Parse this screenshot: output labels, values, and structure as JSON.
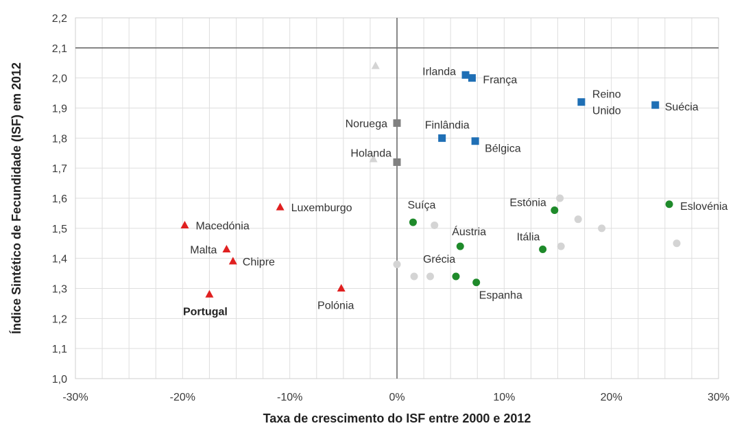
{
  "chart_data": {
    "type": "scatter",
    "xlabel": "Taxa de crescimento do ISF entre 2000 e 2012",
    "ylabel": "Índice Sintético de Fecundidade (ISF) em 2012",
    "xlim": [
      -30,
      30
    ],
    "ylim": [
      1.0,
      2.2
    ],
    "x_ticks": [
      -30,
      -20,
      -10,
      0,
      10,
      20,
      30
    ],
    "x_tick_labels": [
      "-30%",
      "-20%",
      "-10%",
      "0%",
      "10%",
      "20%",
      "30%"
    ],
    "y_ticks": [
      1.0,
      1.1,
      1.2,
      1.3,
      1.4,
      1.5,
      1.6,
      1.7,
      1.8,
      1.9,
      2.0,
      2.1,
      2.2
    ],
    "y_tick_labels": [
      "1,0",
      "1,1",
      "1,2",
      "1,3",
      "1,4",
      "1,5",
      "1,6",
      "1,7",
      "1,8",
      "1,9",
      "2,0",
      "2,1",
      "2,2"
    ],
    "reference_line_y": 2.1,
    "reference_line_x": 0,
    "grid": true,
    "colors": {
      "red": "#e02020",
      "blue": "#1f6fb5",
      "gray": "#808080",
      "green": "#1e8a2a",
      "light": "#d4d4d4"
    },
    "points": [
      {
        "x": -19.8,
        "y": 1.51,
        "shape": "triangle",
        "color": "red",
        "label": "Macedónia"
      },
      {
        "x": -15.9,
        "y": 1.43,
        "shape": "triangle",
        "color": "red",
        "label": "Malta"
      },
      {
        "x": -15.3,
        "y": 1.39,
        "shape": "triangle",
        "color": "red",
        "label": "Chipre"
      },
      {
        "x": -17.5,
        "y": 1.28,
        "shape": "triangle",
        "color": "red",
        "label": "Portugal",
        "bold": true
      },
      {
        "x": -10.9,
        "y": 1.57,
        "shape": "triangle",
        "color": "red",
        "label": "Luxemburgo"
      },
      {
        "x": -5.2,
        "y": 1.3,
        "shape": "triangle",
        "color": "red",
        "label": "Polónia"
      },
      {
        "x": 6.4,
        "y": 2.01,
        "shape": "square",
        "color": "blue",
        "label": "Irlanda"
      },
      {
        "x": 7.0,
        "y": 2.0,
        "shape": "square",
        "color": "blue",
        "label": "França"
      },
      {
        "x": 17.2,
        "y": 1.92,
        "shape": "square",
        "color": "blue",
        "label": "Reino Unido",
        "label_lines": [
          "Reino",
          "Unido"
        ]
      },
      {
        "x": 24.1,
        "y": 1.91,
        "shape": "square",
        "color": "blue",
        "label": "Suécia"
      },
      {
        "x": 4.2,
        "y": 1.8,
        "shape": "square",
        "color": "blue",
        "label": "Finlândia"
      },
      {
        "x": 7.3,
        "y": 1.79,
        "shape": "square",
        "color": "blue",
        "label": "Bélgica"
      },
      {
        "x": 0.0,
        "y": 1.85,
        "shape": "square",
        "color": "gray",
        "label": "Noruega"
      },
      {
        "x": 0.0,
        "y": 1.72,
        "shape": "square",
        "color": "gray",
        "label": "Holanda"
      },
      {
        "x": 1.5,
        "y": 1.52,
        "shape": "circle",
        "color": "green",
        "label": "Suíça"
      },
      {
        "x": 5.9,
        "y": 1.44,
        "shape": "circle",
        "color": "green",
        "label": "Áustria"
      },
      {
        "x": 5.5,
        "y": 1.34,
        "shape": "circle",
        "color": "green",
        "label": "Grécia"
      },
      {
        "x": 7.4,
        "y": 1.32,
        "shape": "circle",
        "color": "green",
        "label": "Espanha"
      },
      {
        "x": 14.7,
        "y": 1.56,
        "shape": "circle",
        "color": "green",
        "label": "Estónia"
      },
      {
        "x": 13.6,
        "y": 1.43,
        "shape": "circle",
        "color": "green",
        "label": "Itália"
      },
      {
        "x": 25.4,
        "y": 1.58,
        "shape": "circle",
        "color": "green",
        "label": "Eslovénia"
      },
      {
        "x": -2.0,
        "y": 2.04,
        "shape": "triangle",
        "color": "light"
      },
      {
        "x": -2.2,
        "y": 1.73,
        "shape": "triangle",
        "color": "light"
      },
      {
        "x": 15.2,
        "y": 1.6,
        "shape": "circle",
        "color": "light"
      },
      {
        "x": 16.9,
        "y": 1.53,
        "shape": "circle",
        "color": "light"
      },
      {
        "x": 19.1,
        "y": 1.5,
        "shape": "circle",
        "color": "light"
      },
      {
        "x": 3.5,
        "y": 1.51,
        "shape": "circle",
        "color": "light"
      },
      {
        "x": 15.3,
        "y": 1.44,
        "shape": "circle",
        "color": "light"
      },
      {
        "x": 26.1,
        "y": 1.45,
        "shape": "circle",
        "color": "light"
      },
      {
        "x": 0.0,
        "y": 1.38,
        "shape": "circle",
        "color": "light"
      },
      {
        "x": 1.6,
        "y": 1.34,
        "shape": "circle",
        "color": "light"
      },
      {
        "x": 3.1,
        "y": 1.34,
        "shape": "circle",
        "color": "light"
      }
    ]
  }
}
